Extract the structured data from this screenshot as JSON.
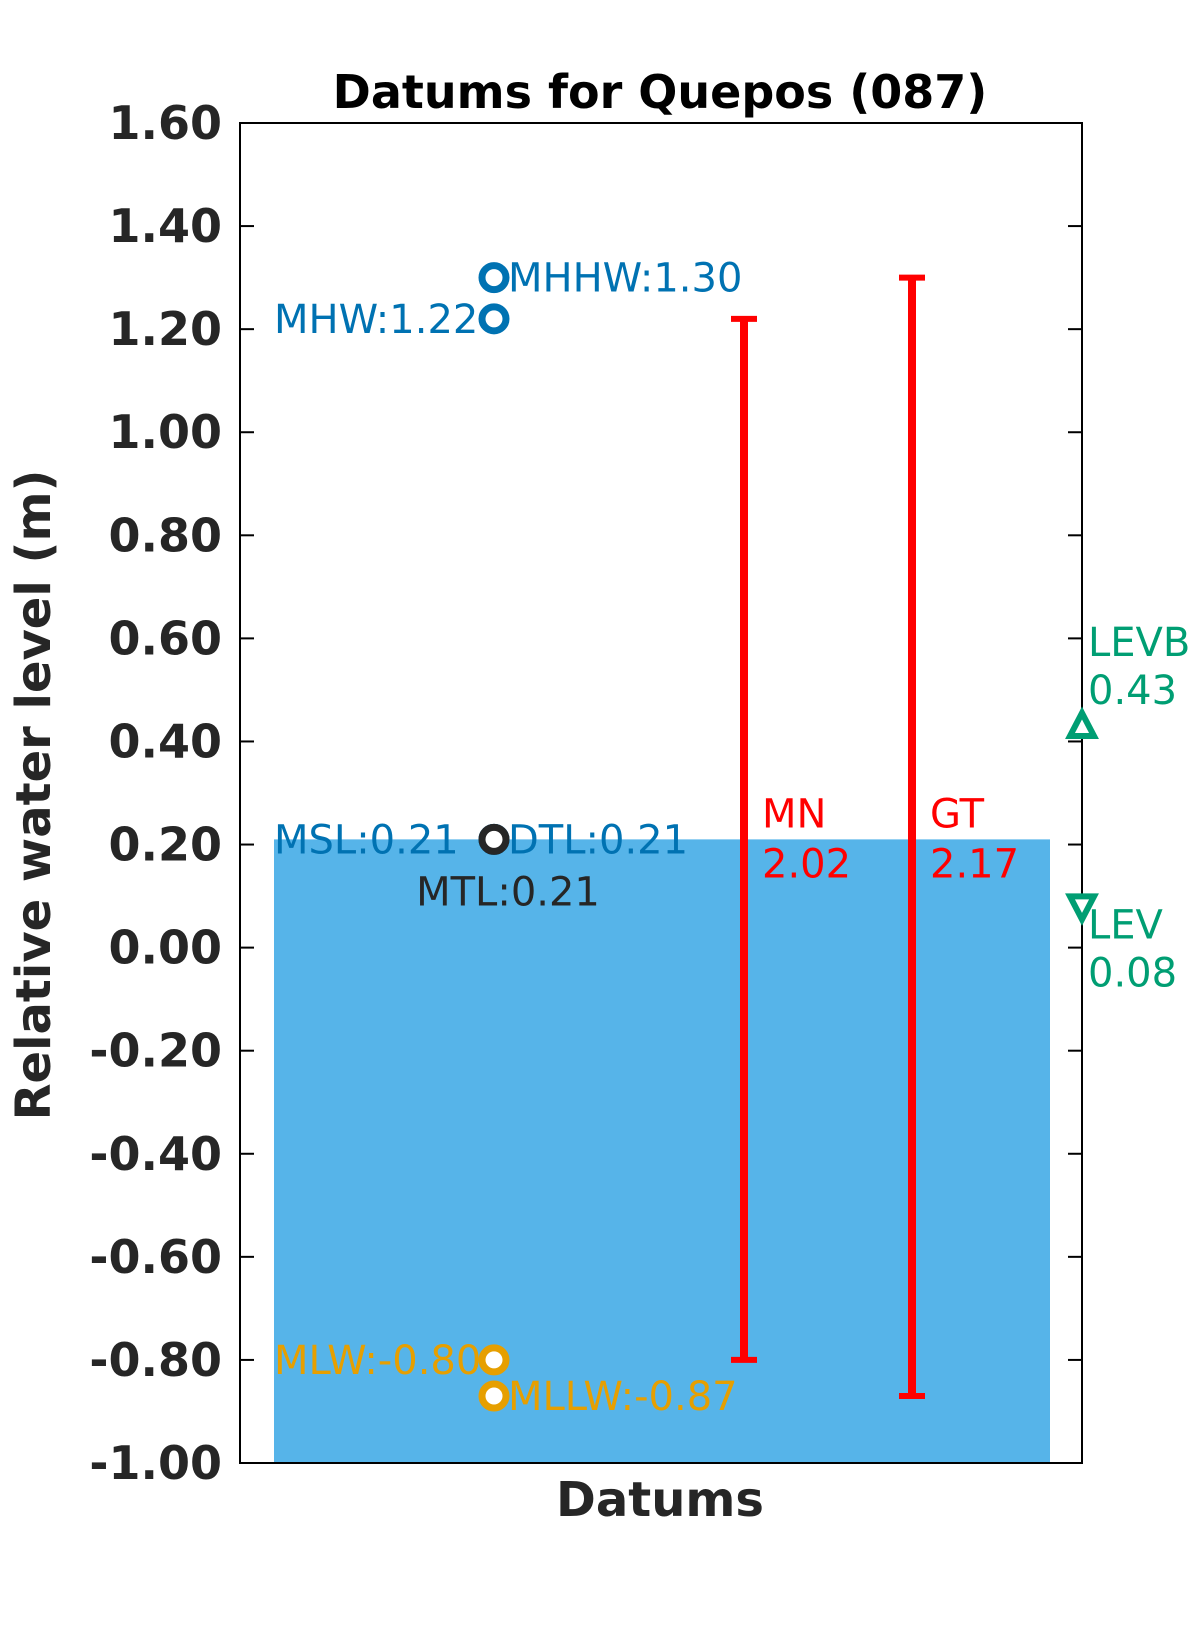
{
  "chart_data": {
    "type": "bar",
    "title": "Datums for Quepos (087)",
    "xlabel": "Datums",
    "ylabel": "Relative water level (m)",
    "ylim": [
      -1.0,
      1.6
    ],
    "yticks": [
      "1.60",
      "1.40",
      "1.20",
      "1.00",
      "0.80",
      "0.60",
      "0.40",
      "0.20",
      "0.00",
      "-0.20",
      "-0.40",
      "-0.60",
      "-0.80",
      "-1.00"
    ],
    "ytick_values": [
      1.6,
      1.4,
      1.2,
      1.0,
      0.8,
      0.6,
      0.4,
      0.2,
      0.0,
      -0.2,
      -0.4,
      -0.6,
      -0.8,
      -1.0
    ],
    "grid": false,
    "msl_bar": {
      "bottom": -1.0,
      "top": 0.21,
      "color": "#56b4e9"
    },
    "datums": [
      {
        "name": "MHHW",
        "value": 1.3,
        "label": "MHHW:1.30",
        "color": "#0072b2",
        "label_side": "right"
      },
      {
        "name": "MHW",
        "value": 1.22,
        "label": "MHW:1.22",
        "color": "#0072b2",
        "label_side": "left"
      },
      {
        "name": "MSL",
        "value": 0.21,
        "label": "MSL:0.21",
        "color": "#0072b2",
        "label_side": "left"
      },
      {
        "name": "DTL",
        "value": 0.21,
        "label": "DTL:0.21",
        "color": "#0072b2",
        "label_side": "right"
      },
      {
        "name": "MTL",
        "value": 0.21,
        "label": "MTL:0.21",
        "color": "#262626",
        "label_side": "below"
      },
      {
        "name": "MLW",
        "value": -0.8,
        "label": "MLW:-0.80",
        "color": "#e69f00",
        "label_side": "left"
      },
      {
        "name": "MLLW",
        "value": -0.87,
        "label": "MLLW:-0.87",
        "color": "#e69f00",
        "label_side": "right"
      }
    ],
    "ranges": [
      {
        "name": "MN",
        "label": "MN",
        "value_label": "2.02",
        "low": -0.8,
        "high": 1.22,
        "color": "#ff0000"
      },
      {
        "name": "GT",
        "label": "GT",
        "value_label": "2.17",
        "low": -0.87,
        "high": 1.3,
        "color": "#ff0000"
      }
    ],
    "extremes": [
      {
        "name": "LEVB",
        "label": "LEVB",
        "value_label": "0.43",
        "value": 0.43,
        "marker": "triangle-up",
        "color": "#009e73"
      },
      {
        "name": "LEV",
        "label": "LEV",
        "value_label": "0.08",
        "value": 0.08,
        "marker": "triangle-down",
        "color": "#009e73"
      }
    ]
  }
}
